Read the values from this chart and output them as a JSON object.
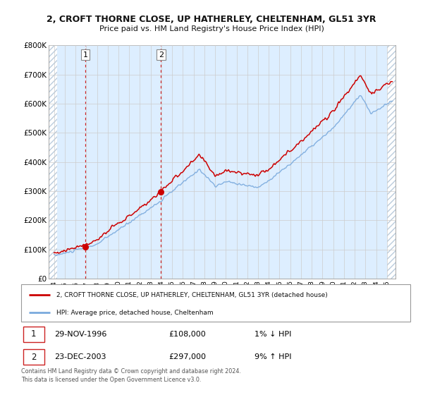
{
  "title": "2, CROFT THORNE CLOSE, UP HATHERLEY, CHELTENHAM, GL51 3YR",
  "subtitle": "Price paid vs. HM Land Registry's House Price Index (HPI)",
  "ylabel_ticks": [
    "£0",
    "£100K",
    "£200K",
    "£300K",
    "£400K",
    "£500K",
    "£600K",
    "£700K",
    "£800K"
  ],
  "ytick_vals": [
    0,
    100000,
    200000,
    300000,
    400000,
    500000,
    600000,
    700000,
    800000
  ],
  "ylim": [
    0,
    800000
  ],
  "xlim_start": 1993.5,
  "xlim_end": 2025.8,
  "sale1_x": 1996.91,
  "sale1_y": 108000,
  "sale1_label": "1",
  "sale2_x": 2003.97,
  "sale2_y": 297000,
  "sale2_label": "2",
  "sale1_date": "29-NOV-1996",
  "sale1_price": "£108,000",
  "sale1_hpi": "1% ↓ HPI",
  "sale2_date": "23-DEC-2003",
  "sale2_price": "£297,000",
  "sale2_hpi": "9% ↑ HPI",
  "legend_line1": "2, CROFT THORNE CLOSE, UP HATHERLEY, CHELTENHAM, GL51 3YR (detached house)",
  "legend_line2": "HPI: Average price, detached house, Cheltenham",
  "footer": "Contains HM Land Registry data © Crown copyright and database right 2024.\nThis data is licensed under the Open Government Licence v3.0.",
  "line_color_red": "#cc0000",
  "line_color_blue": "#7aaadd",
  "bg_color": "#ddeeff",
  "plot_bg": "#ffffff",
  "grid_color": "#cccccc",
  "hatch_color": "#bbccdd"
}
